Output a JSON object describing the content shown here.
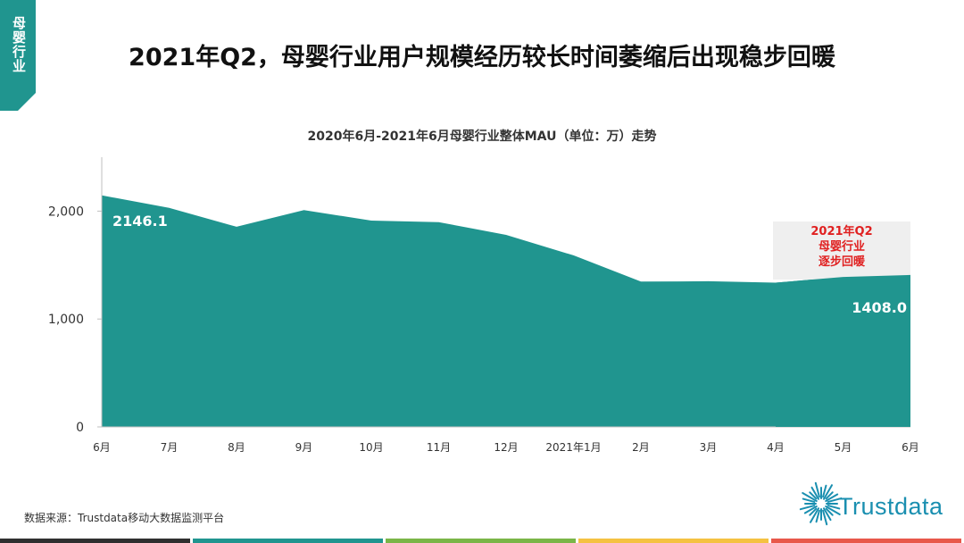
{
  "side_tab": {
    "label": "母婴行业",
    "color": "#20958f"
  },
  "headline": "2021年Q2，母婴行业用户规模经历较长时间萎缩后出现稳步回暖",
  "chart_data": {
    "type": "area",
    "title": "2020年6月-2021年6月母婴行业整体MAU（单位：万）走势",
    "categories": [
      "6月",
      "7月",
      "8月",
      "9月",
      "10月",
      "11月",
      "12月",
      "2021年1月",
      "2月",
      "3月",
      "4月",
      "5月",
      "6月"
    ],
    "values": [
      2146.1,
      2030,
      1855,
      2010,
      1912,
      1898,
      1780,
      1590,
      1347,
      1350,
      1337,
      1390,
      1408.0
    ],
    "y_ticks": [
      "0",
      "1,000",
      "2,000"
    ],
    "y_tick_values": [
      0,
      1000,
      2000
    ],
    "ylim": [
      0,
      2500
    ],
    "grid": false,
    "fill_color": "#20958f",
    "data_labels": [
      {
        "index": 0,
        "text": "2146.1"
      },
      {
        "index": 12,
        "text": "1408.0"
      }
    ],
    "annotation": {
      "lines": [
        "2021年Q2",
        "母婴行业",
        "逐步回暖"
      ],
      "color": "#e02020",
      "background": "#efefef"
    }
  },
  "source": "数据来源：Trustdata移动大数据监测平台",
  "logo": {
    "text": "Trustdata",
    "icon": "starburst-icon",
    "color": "#1a8fb0"
  },
  "footer_colors": [
    "#2f2f2f",
    "#20958f",
    "#7ab648",
    "#f5c242",
    "#e8584a"
  ]
}
